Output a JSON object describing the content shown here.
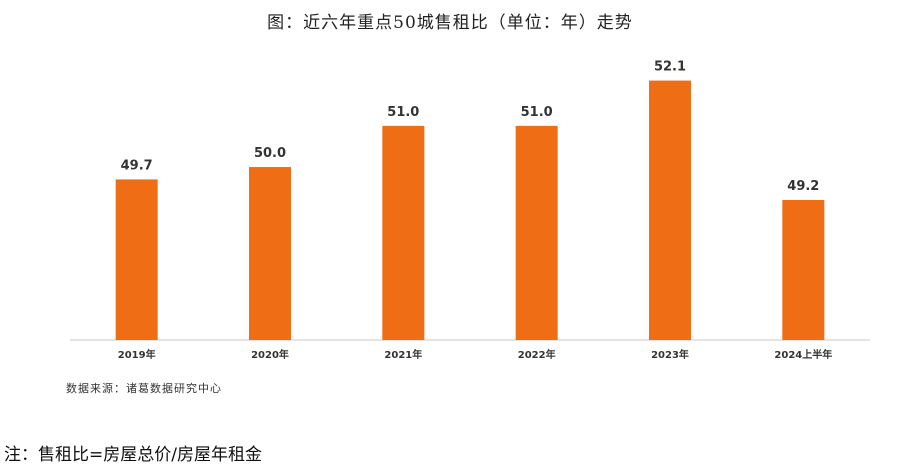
{
  "chart_data": {
    "type": "bar",
    "title": "图：近六年重点50城售租比（单位：年）走势",
    "categories": [
      "2019年",
      "2020年",
      "2021年",
      "2022年",
      "2023年",
      "2024上半年"
    ],
    "values": [
      49.7,
      50.0,
      51.0,
      51.0,
      52.1,
      49.2
    ],
    "value_labels": [
      "49.7",
      "50.0",
      "51.0",
      "51.0",
      "52.1",
      "49.2"
    ],
    "ylim": [
      45.8,
      52.6
    ],
    "grid": false,
    "legend": "none",
    "bar_color": "#EE6D15"
  },
  "source": "数据来源：诸葛数据研究中心",
  "note": "注：售租比=房屋总价/房屋年租金"
}
